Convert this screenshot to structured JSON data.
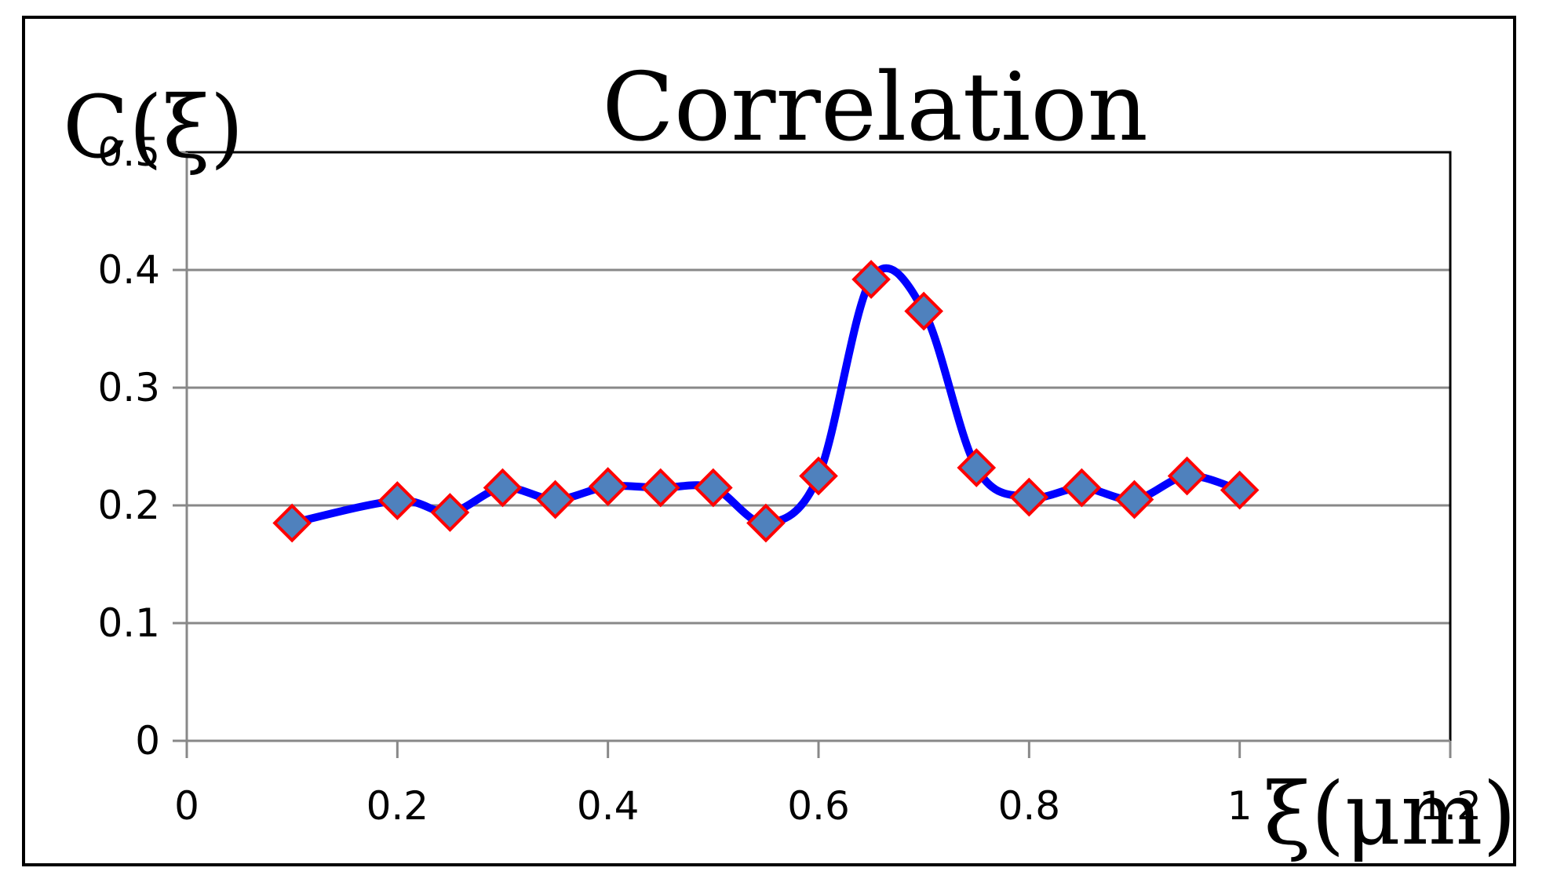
{
  "chart_data": {
    "type": "scatter",
    "style": "smoothed line with diamond markers",
    "title": "Correlation",
    "xlabel": "ξ(μm)",
    "ylabel": "C(ξ)",
    "xlim": [
      0,
      1.2
    ],
    "ylim": [
      0,
      0.5
    ],
    "xticks": [
      "0",
      "0.2",
      "0.4",
      "0.6",
      "0.8",
      "1",
      "1.2"
    ],
    "yticks": [
      "0",
      "0.1",
      "0.2",
      "0.3",
      "0.4",
      "0.5"
    ],
    "grid": "horizontal",
    "legend": "none",
    "colors": {
      "line": "#0000ff",
      "marker_fill": "#4f81bd",
      "marker_edge": "#ff0000",
      "grid": "#888888",
      "frame": "#000000"
    },
    "series": [
      {
        "x": [
          0.1,
          0.2,
          0.25,
          0.3,
          0.35,
          0.4,
          0.45,
          0.5,
          0.55,
          0.6,
          0.65,
          0.7,
          0.75,
          0.8,
          0.85,
          0.9,
          0.95,
          1.0
        ],
        "y": [
          0.185,
          0.204,
          0.194,
          0.215,
          0.205,
          0.216,
          0.215,
          0.215,
          0.185,
          0.225,
          0.392,
          0.365,
          0.232,
          0.207,
          0.215,
          0.205,
          0.225,
          0.213
        ]
      }
    ]
  }
}
